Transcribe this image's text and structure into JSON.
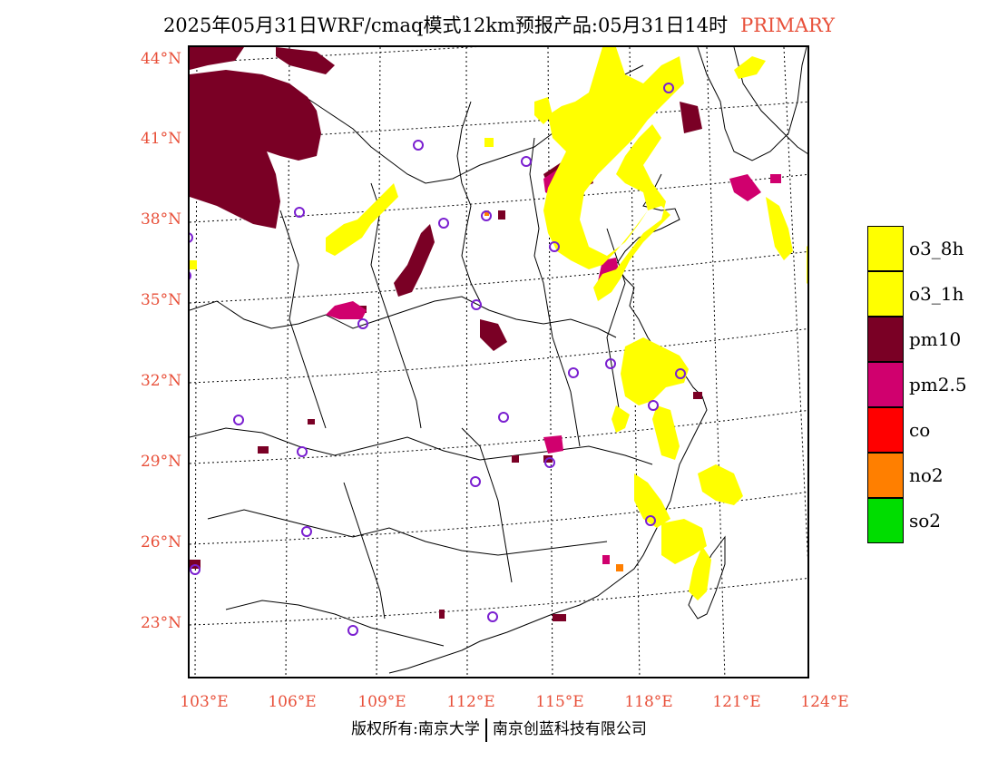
{
  "title": {
    "main": "2025年05月31日WRF/cmaq模式12km预报产品:05月31日14时",
    "tag": "PRIMARY"
  },
  "axes": {
    "lat_labels": [
      "44°N",
      "41°N",
      "38°N",
      "35°N",
      "32°N",
      "29°N",
      "26°N",
      "23°N"
    ],
    "lon_labels": [
      "103°E",
      "106°E",
      "109°E",
      "112°E",
      "115°E",
      "118°E",
      "121°E",
      "124°E"
    ]
  },
  "legend": [
    {
      "label": "o3_8h",
      "color": "#ffff00"
    },
    {
      "label": "o3_1h",
      "color": "#ffff00"
    },
    {
      "label": "pm10",
      "color": "#7a0025"
    },
    {
      "label": "pm2.5",
      "color": "#d0006e"
    },
    {
      "label": "co",
      "color": "#ff0000"
    },
    {
      "label": "no2",
      "color": "#ff7f00"
    },
    {
      "label": "so2",
      "color": "#00dd00"
    }
  ],
  "footer": {
    "left": "版权所有:南京大学",
    "right": "南京创蓝科技有限公司"
  }
}
